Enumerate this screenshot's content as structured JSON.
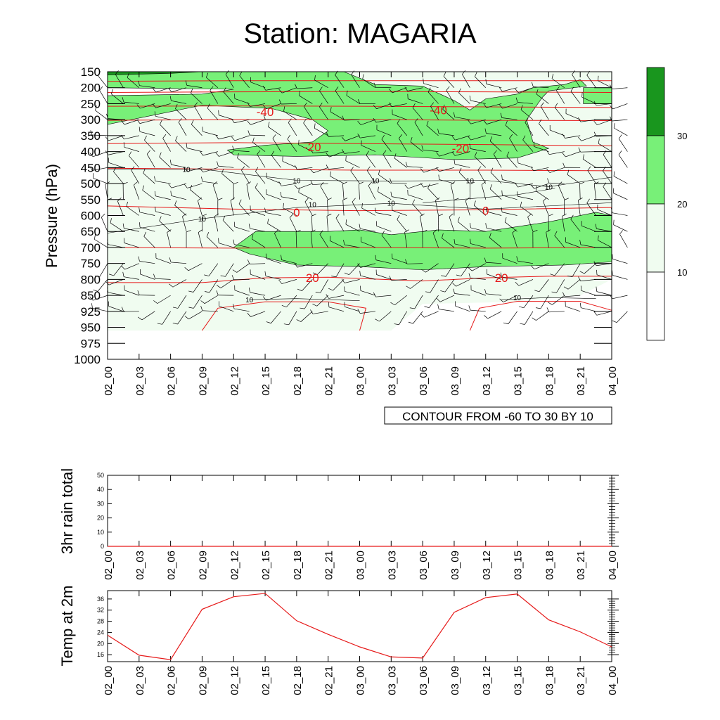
{
  "title": "Station: MAGARIA",
  "colors": {
    "shade_low": "#f0fcf0",
    "shade_mid": "#78f078",
    "shade_high": "#19961e",
    "contour_red": "#e61919",
    "line": "#000000"
  },
  "chart_data": [
    {
      "type": "heatmap",
      "title": "Station: MAGARIA",
      "ylabel": "Pressure (hPa)",
      "xlabel": "",
      "x_ticks": [
        "02_00",
        "02_03",
        "02_06",
        "02_09",
        "02_12",
        "02_15",
        "02_18",
        "02_21",
        "03_00",
        "03_03",
        "03_06",
        "03_09",
        "03_12",
        "03_15",
        "03_18",
        "03_21",
        "04_00"
      ],
      "y_ticks": [
        150,
        200,
        250,
        300,
        350,
        400,
        450,
        500,
        550,
        600,
        650,
        700,
        750,
        800,
        850,
        925,
        950,
        975,
        1000
      ],
      "info_label": "CONTOUR FROM -60 TO 30 BY 10",
      "shading_legend": {
        "levels": [
          10,
          20,
          30
        ]
      },
      "temperature_contour_labels": [
        {
          "text": "-40",
          "x_index": 5.0,
          "p": 275
        },
        {
          "text": "-40",
          "x_index": 10.5,
          "p": 270
        },
        {
          "text": "-20",
          "x_index": 6.5,
          "p": 385
        },
        {
          "text": "-20",
          "x_index": 11.2,
          "p": 390
        },
        {
          "text": "0",
          "x_index": 6.0,
          "p": 590
        },
        {
          "text": "0",
          "x_index": 12.0,
          "p": 585
        },
        {
          "text": "20",
          "x_index": 6.5,
          "p": 795
        },
        {
          "text": "20",
          "x_index": 12.5,
          "p": 795
        }
      ],
      "humidity_contour_labels": [
        {
          "text": "10",
          "x_index": 2.5,
          "p": 455
        },
        {
          "text": "10",
          "x_index": 6.0,
          "p": 490
        },
        {
          "text": "10",
          "x_index": 8.5,
          "p": 490
        },
        {
          "text": "10",
          "x_index": 11.5,
          "p": 490
        },
        {
          "text": "10",
          "x_index": 14.0,
          "p": 510
        },
        {
          "text": "10",
          "x_index": 6.5,
          "p": 565
        },
        {
          "text": "10",
          "x_index": 9.0,
          "p": 560
        },
        {
          "text": "10",
          "x_index": 3.0,
          "p": 610
        },
        {
          "text": "10",
          "x_index": 4.5,
          "p": 870
        },
        {
          "text": "10",
          "x_index": 13.0,
          "p": 860
        }
      ]
    },
    {
      "type": "line",
      "ylabel": "3hr rain total",
      "x_ticks": [
        "02_00",
        "02_03",
        "02_06",
        "02_09",
        "02_12",
        "02_15",
        "02_18",
        "02_21",
        "03_00",
        "03_03",
        "03_06",
        "03_09",
        "03_12",
        "03_15",
        "03_18",
        "03_21",
        "04_00"
      ],
      "y_ticks": [
        0,
        10,
        20,
        30,
        40,
        50
      ],
      "ylim": [
        0,
        50
      ],
      "series": [
        {
          "values": [
            0,
            0,
            0,
            0,
            0,
            0,
            0,
            0,
            0,
            0,
            0,
            0,
            0,
            0,
            0,
            0,
            0
          ]
        }
      ]
    },
    {
      "type": "line",
      "ylabel": "Temp at 2m",
      "x_ticks": [
        "02_00",
        "02_03",
        "02_06",
        "02_09",
        "02_12",
        "02_15",
        "02_18",
        "02_21",
        "03_00",
        "03_03",
        "03_06",
        "03_09",
        "03_12",
        "03_15",
        "03_18",
        "03_21",
        "04_00"
      ],
      "y_ticks": [
        16,
        20,
        24,
        28,
        32,
        36
      ],
      "ylim": [
        13.5,
        39
      ],
      "series": [
        {
          "values": [
            23,
            15.8,
            14.2,
            32.3,
            36.8,
            38,
            28.2,
            23.3,
            18.8,
            15.2,
            14.8,
            31.2,
            36.5,
            37.8,
            28.5,
            24.2,
            18.8
          ]
        }
      ]
    }
  ]
}
